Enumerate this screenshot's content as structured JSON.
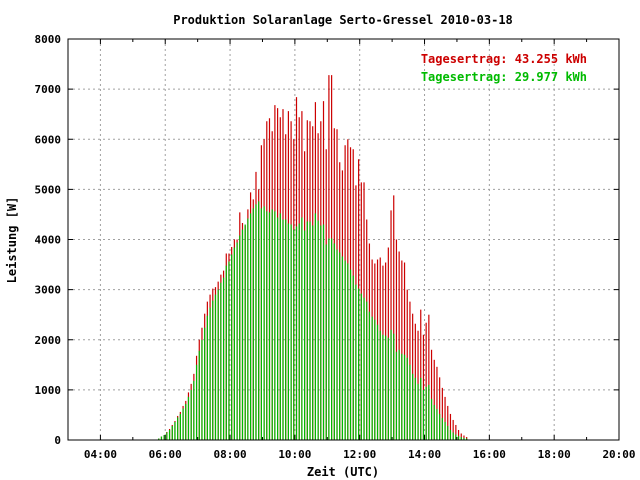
{
  "chart_data": {
    "type": "bar",
    "title": "Produktion Solaranlage Serto-Gressel 2010-03-18",
    "xlabel": "Zeit (UTC)",
    "ylabel": "Leistung [W]",
    "x_ticks": [
      "04:00",
      "06:00",
      "08:00",
      "10:00",
      "12:00",
      "14:00",
      "16:00",
      "18:00",
      "20:00"
    ],
    "y_ticks": [
      "0",
      "1000",
      "2000",
      "3000",
      "4000",
      "5000",
      "6000",
      "7000",
      "8000"
    ],
    "xlim_hours": [
      3.0,
      20.0
    ],
    "ylim": [
      0,
      8000
    ],
    "grid": true,
    "legend_placement": "top-right",
    "series": [
      {
        "name": "Tagesertrag: 43.255 kWh",
        "color": "#cc0000",
        "x_start_hour": 5.8,
        "x_step_hour": 0.0833333,
        "values": [
          30,
          70,
          100,
          160,
          220,
          300,
          380,
          480,
          560,
          680,
          780,
          950,
          1120,
          1320,
          1680,
          2000,
          2240,
          2520,
          2760,
          2900,
          3020,
          3050,
          3160,
          3300,
          3380,
          3720,
          3720,
          3850,
          4000,
          4000,
          4540,
          4330,
          4280,
          4600,
          4940,
          4800,
          5350,
          5000,
          5880,
          6000,
          6360,
          6420,
          6160,
          6680,
          6620,
          6440,
          6600,
          6100,
          6560,
          6360,
          6000,
          6840,
          6440,
          6560,
          5760,
          6380,
          6360,
          6260,
          6740,
          6120,
          6360,
          6760,
          5800,
          7280,
          7280,
          6220,
          6200,
          5540,
          5380,
          5880,
          6000,
          5840,
          5800,
          5080,
          5600,
          5140,
          5140,
          4400,
          3920,
          3600,
          3520,
          3600,
          3640,
          3480,
          3540,
          3840,
          4580,
          4880,
          4000,
          3760,
          3580,
          3540,
          3000,
          2760,
          2520,
          2320,
          2180,
          2600,
          2100,
          2340,
          2500,
          1800,
          1600,
          1460,
          1250,
          1040,
          860,
          680,
          520,
          400,
          300,
          200,
          130,
          90,
          60
        ]
      },
      {
        "name": "Tagesertrag: 29.977 kWh",
        "color": "#00bb00",
        "x_start_hour": 5.8,
        "x_step_hour": 0.0833333,
        "values": [
          30,
          70,
          100,
          150,
          200,
          280,
          360,
          450,
          520,
          630,
          720,
          860,
          1000,
          1180,
          1500,
          1780,
          2000,
          2240,
          2480,
          2640,
          2780,
          2900,
          3000,
          3140,
          3240,
          3480,
          3560,
          3700,
          3840,
          3940,
          4080,
          4200,
          4300,
          4420,
          4520,
          4620,
          4700,
          4760,
          4620,
          4660,
          4560,
          4540,
          4600,
          4560,
          4440,
          4520,
          4400,
          4400,
          4320,
          4300,
          4200,
          4260,
          4320,
          4440,
          4180,
          4360,
          4360,
          4280,
          4520,
          4380,
          4280,
          4300,
          3900,
          4020,
          4020,
          3920,
          3800,
          3740,
          3660,
          3580,
          3520,
          3400,
          3280,
          3100,
          3020,
          2920,
          2840,
          2760,
          2560,
          2460,
          2400,
          2300,
          2180,
          2100,
          2080,
          2040,
          2200,
          2120,
          1760,
          1800,
          1720,
          1700,
          1640,
          1500,
          1320,
          1240,
          1120,
          1240,
          1000,
          1060,
          1100,
          820,
          700,
          620,
          520,
          440,
          360,
          280,
          200,
          150,
          110,
          80,
          60,
          40,
          30
        ]
      }
    ]
  }
}
